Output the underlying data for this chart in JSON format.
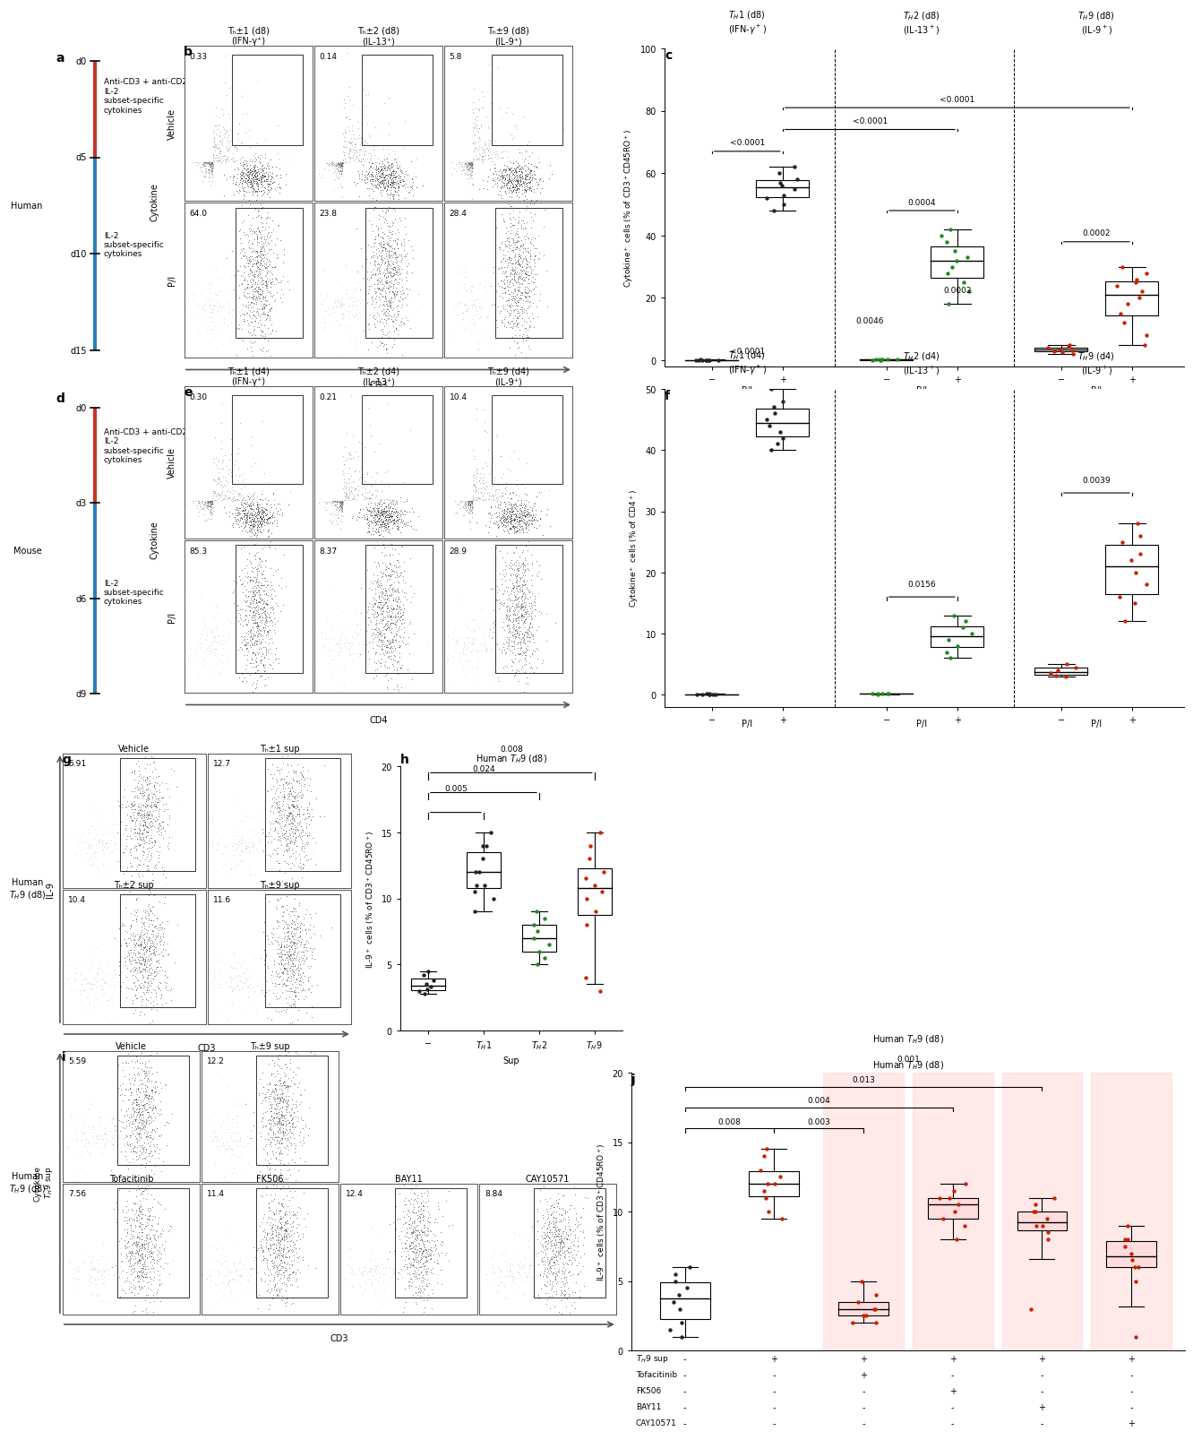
{
  "panel_b_pcts": [
    [
      "0.33",
      "0.14",
      "5.8"
    ],
    [
      "64.0",
      "23.8",
      "28.4"
    ]
  ],
  "panel_b_col_labels": [
    "Tₕ±1 (d8)\n(IFN-γ⁺)",
    "Tₕ±2 (d8)\n(IL-13⁺)",
    "Tₕ±9 (d8)\n(IL-9⁺)"
  ],
  "panel_e_pcts": [
    [
      "0.30",
      "0.21",
      "10.4"
    ],
    [
      "85.3",
      "8.37",
      "28.9"
    ]
  ],
  "panel_e_col_labels": [
    "Tₕ±1 (d4)\n(IFN-γ⁺)",
    "Tₕ±2 (d4)\n(IL-13⁺)",
    "Tₕ±9 (d4)\n(IL-9⁺)"
  ],
  "panel_g_pcts": [
    [
      "5.91",
      "12.7"
    ],
    [
      "10.4",
      "11.6"
    ]
  ],
  "panel_g_col_labels": [
    "Vehicle",
    "Tₕ±1 sup",
    "Tₕ±2 sup",
    "Tₕ±9 sup"
  ],
  "panel_i_pcts_top": [
    "5.59",
    "12.2"
  ],
  "panel_i_pcts_bot": [
    "7.56",
    "11.4",
    "12.4",
    "8.84"
  ],
  "panel_i_col_top": [
    "Vehicle",
    "Tₕ±9 sup"
  ],
  "panel_i_col_bot": [
    "Tofacitinib",
    "FK506",
    "BAY11",
    "CAY10571"
  ],
  "c_th1_neg": [
    0.1,
    0.15,
    0.12,
    0.08,
    0.2,
    0.1,
    0.13,
    0.09,
    0.11
  ],
  "c_th1_pos": [
    55,
    58,
    62,
    50,
    48,
    52,
    57,
    60,
    53,
    56
  ],
  "c_th2_neg": [
    0.2,
    0.3,
    0.15,
    0.25,
    0.18,
    0.22,
    0.1,
    0.12
  ],
  "c_th2_pos": [
    28,
    32,
    35,
    22,
    38,
    30,
    42,
    25,
    18,
    33,
    40
  ],
  "c_th9_neg": [
    2,
    3,
    4,
    5,
    3.5,
    2.5,
    4.5,
    3.2
  ],
  "c_th9_pos": [
    20,
    25,
    28,
    15,
    22,
    18,
    30,
    12,
    26,
    24,
    8,
    5
  ],
  "f_th1_neg": [
    0.1,
    0.12,
    0.08,
    0.15,
    0.1,
    0.13,
    0.09,
    0.11
  ],
  "f_th1_pos": [
    45,
    48,
    42,
    50,
    40,
    47,
    43,
    46,
    44,
    41
  ],
  "f_th2_neg": [
    0.2,
    0.15,
    0.25,
    0.18,
    0.22,
    0.12
  ],
  "f_th2_pos": [
    8,
    10,
    12,
    6,
    9,
    11,
    7,
    13
  ],
  "f_th9_neg": [
    3,
    4,
    5,
    3.5,
    4.5,
    3.2
  ],
  "f_th9_pos": [
    18,
    22,
    25,
    15,
    20,
    28,
    16,
    23,
    12,
    26
  ],
  "h_neg": [
    3.5,
    3.0,
    3.8,
    4.2,
    3.1,
    2.8,
    4.5,
    3.3
  ],
  "h_th1": [
    10,
    11,
    12,
    9,
    13,
    14,
    10.5,
    11,
    12,
    14,
    15
  ],
  "h_th2": [
    6,
    7,
    8,
    5,
    9,
    6.5,
    7.5,
    5.5,
    8.5
  ],
  "h_th9": [
    10,
    12,
    11,
    13,
    9,
    14,
    10.5,
    11.5,
    8,
    15,
    4,
    3
  ],
  "j_veh": [
    4,
    5,
    3,
    6,
    4.5,
    1,
    2,
    1.5,
    5.5,
    3.5
  ],
  "j_th9sup": [
    11,
    13,
    12,
    14,
    10,
    11.5,
    12.5,
    9.5,
    12,
    14.5
  ],
  "j_tofa": [
    2,
    3,
    2.5,
    4,
    3.5,
    2,
    3,
    5,
    2.5
  ],
  "j_fk506": [
    10,
    11,
    9,
    12,
    10.5,
    11.5,
    9.5,
    8,
    11
  ],
  "j_bay11": [
    9,
    8,
    10,
    9.5,
    11,
    8.5,
    10,
    9,
    10.5,
    3
  ],
  "j_cay": [
    6,
    7,
    8,
    5,
    7.5,
    6.5,
    9,
    8,
    6,
    1
  ],
  "colors": {
    "black": "#222222",
    "red": "#cc2200",
    "green": "#228822",
    "timeline_red": "#c0392b",
    "timeline_blue": "#2980b9"
  }
}
